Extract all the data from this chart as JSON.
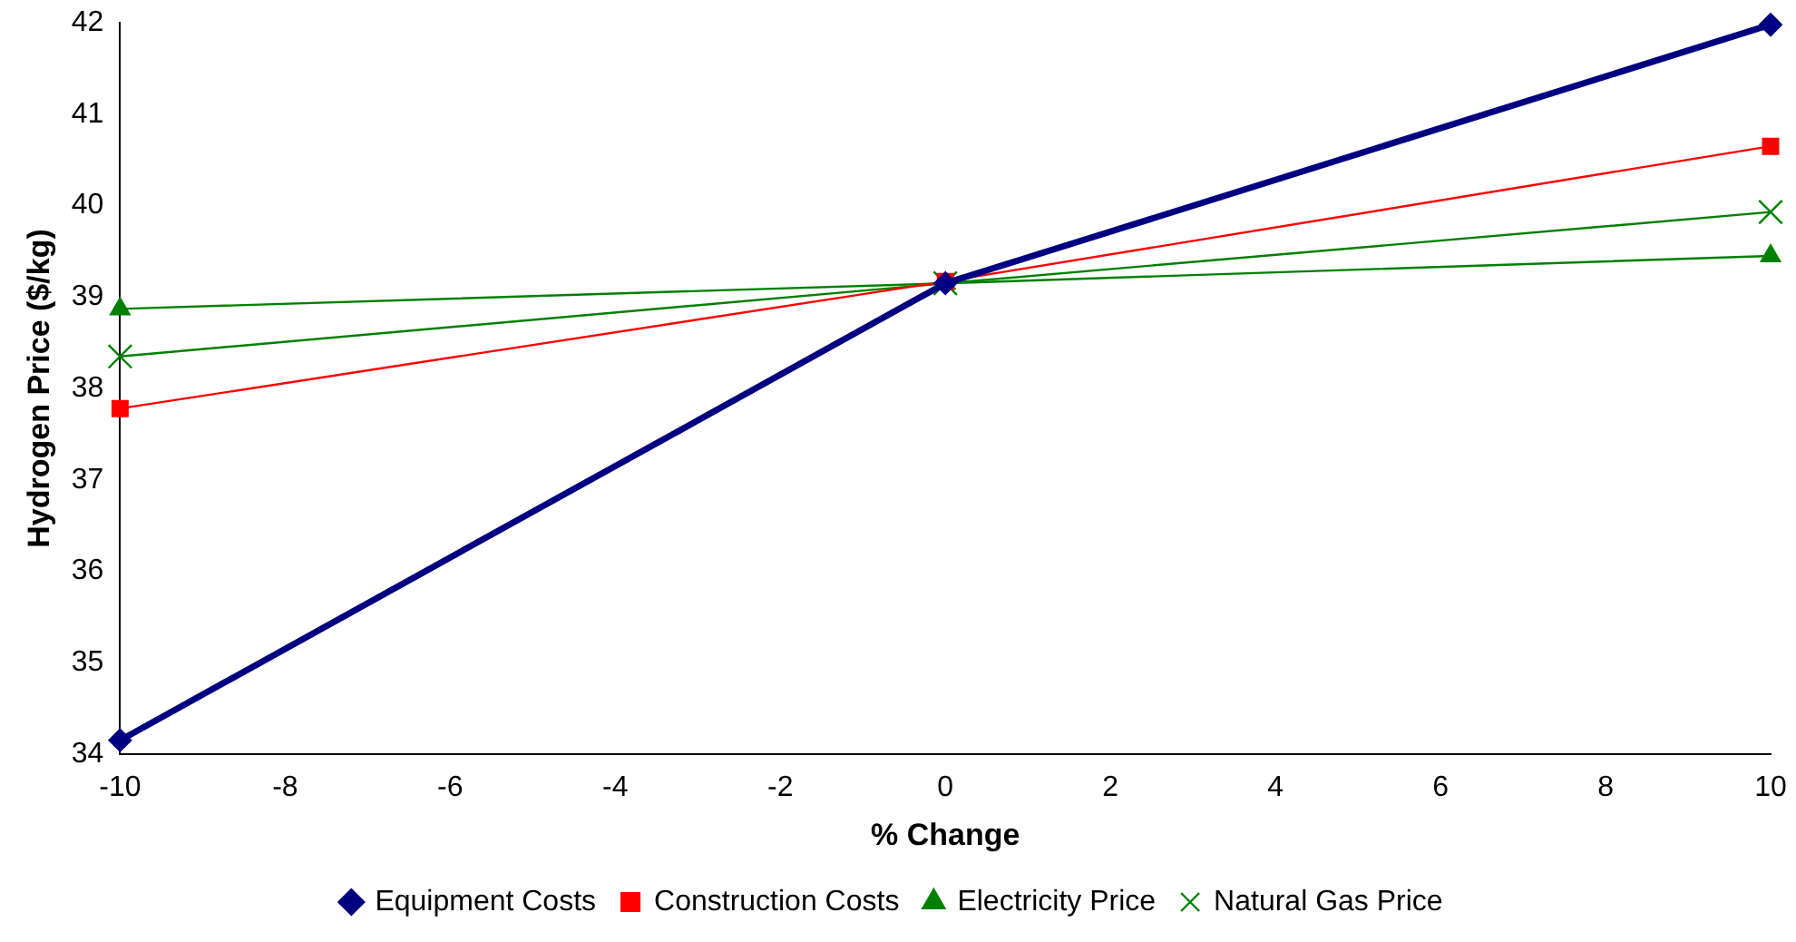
{
  "chart_data": {
    "type": "line",
    "xlabel": "% Change",
    "ylabel": "Hydrogen Price ($/kg)",
    "x": [
      -10,
      0,
      10
    ],
    "series": [
      {
        "name": "Equipment Costs",
        "color": "#000080",
        "values": [
          34.15,
          39.15,
          41.98
        ],
        "marker": "diamond"
      },
      {
        "name": "Construction Costs",
        "color": "#ff0000",
        "values": [
          37.78,
          39.17,
          40.65
        ],
        "marker": "square"
      },
      {
        "name": "Electricity Price",
        "color": "#008000",
        "values": [
          38.87,
          39.15,
          39.45
        ],
        "marker": "triangle"
      },
      {
        "name": "Natural Gas Price",
        "color": "#008000",
        "values": [
          38.35,
          39.15,
          39.93
        ],
        "marker": "cross"
      }
    ],
    "xlim": [
      -10,
      10
    ],
    "xticks": [
      -10,
      -8,
      -6,
      -4,
      -2,
      0,
      2,
      4,
      6,
      8,
      10
    ],
    "ylim": [
      34,
      42
    ],
    "yticks": [
      34,
      35,
      36,
      37,
      38,
      39,
      40,
      41,
      42
    ],
    "grid": false,
    "legend": "bottom"
  }
}
